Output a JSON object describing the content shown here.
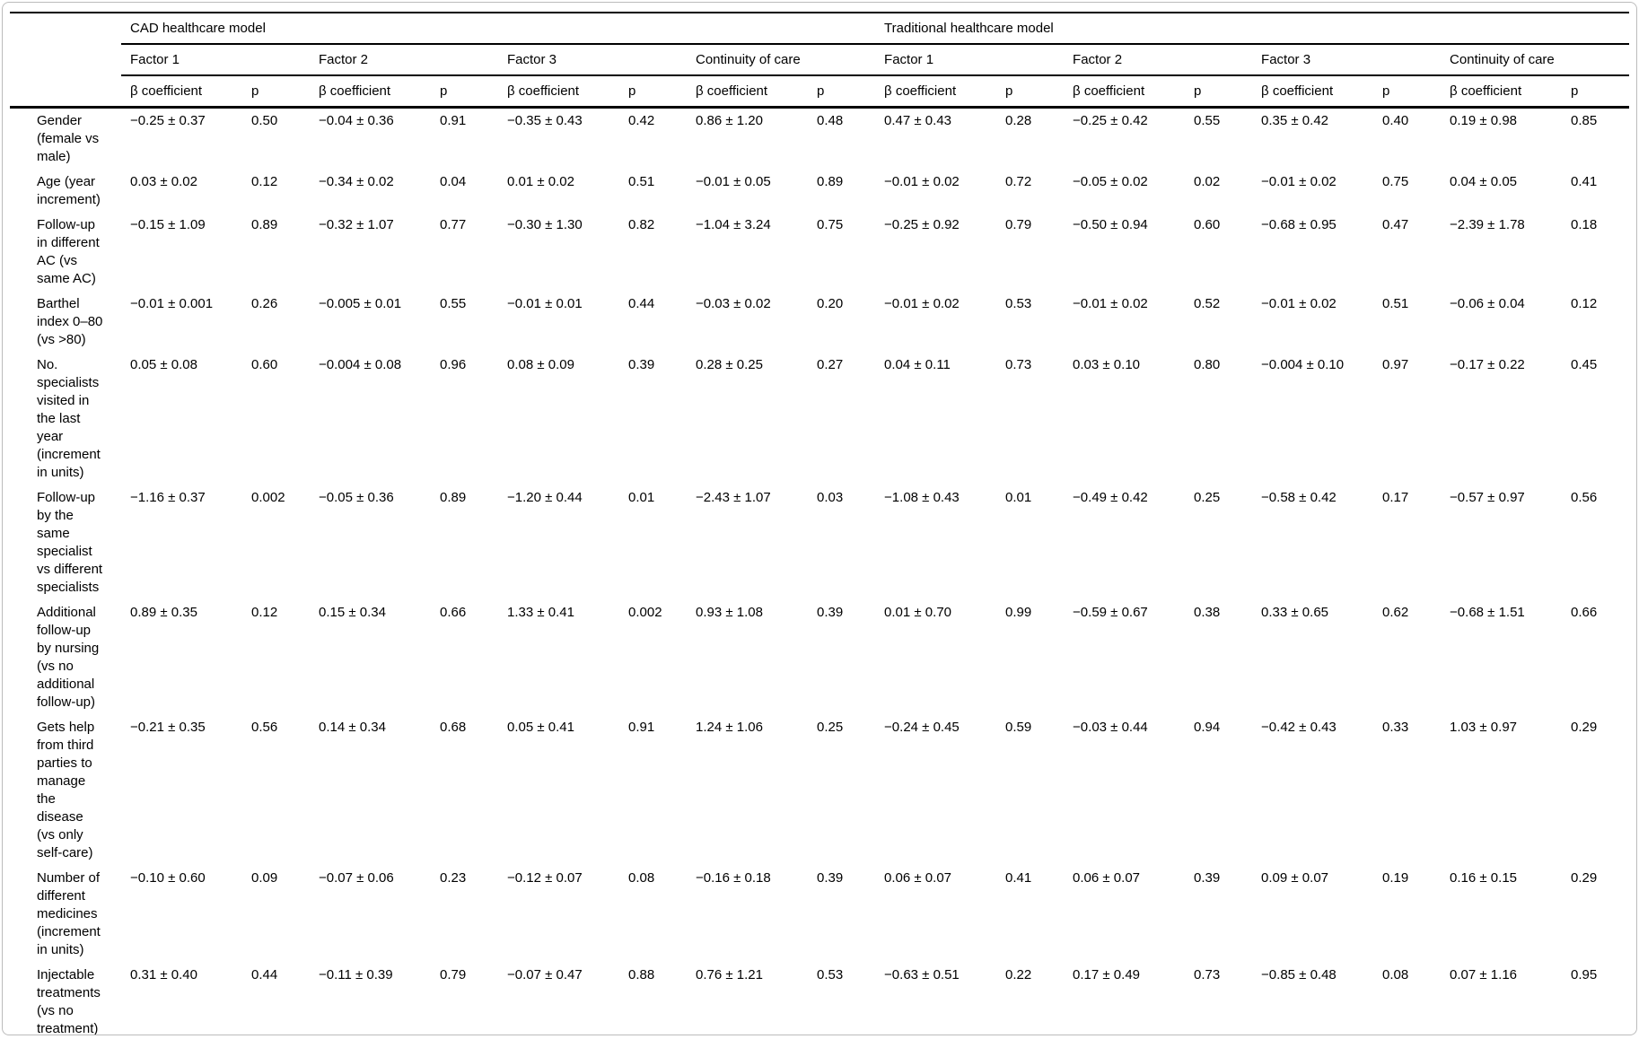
{
  "page": {
    "background": "#ffffff",
    "text_color": "#000000",
    "frame_border_color": "#bcbcbc",
    "rule_color": "#000000"
  },
  "table": {
    "stub_header": "",
    "model_groups": [
      {
        "label": "CAD healthcare model"
      },
      {
        "label": "Traditional healthcare model"
      }
    ],
    "factor_headers": [
      "Factor 1",
      "Factor 2",
      "Factor 3",
      "Continuity of care"
    ],
    "stat_headers": {
      "beta": "β coefficient",
      "p": "p"
    },
    "rows": [
      {
        "label": "Gender\n(female vs\nmale)",
        "cells": [
          "−0.25 ± 0.37",
          "0.50",
          "−0.04 ± 0.36",
          "0.91",
          "−0.35 ± 0.43",
          "0.42",
          "0.86 ± 1.20",
          "0.48",
          "0.47 ± 0.43",
          "0.28",
          "−0.25 ± 0.42",
          "0.55",
          "0.35 ± 0.42",
          "0.40",
          "0.19 ± 0.98",
          "0.85"
        ]
      },
      {
        "label": "Age (year\nincrement)",
        "cells": [
          "0.03 ± 0.02",
          "0.12",
          "−0.34 ± 0.02",
          "0.04",
          "0.01 ± 0.02",
          "0.51",
          "−0.01 ± 0.05",
          "0.89",
          "−0.01 ± 0.02",
          "0.72",
          "−0.05 ± 0.02",
          "0.02",
          "−0.01 ± 0.02",
          "0.75",
          "0.04 ± 0.05",
          "0.41"
        ]
      },
      {
        "label": "Follow-up\nin different\nAC (vs\nsame AC)",
        "cells": [
          "−0.15 ± 1.09",
          "0.89",
          "−0.32 ± 1.07",
          "0.77",
          "−0.30 ± 1.30",
          "0.82",
          "−1.04 ± 3.24",
          "0.75",
          "−0.25 ± 0.92",
          "0.79",
          "−0.50 ± 0.94",
          "0.60",
          "−0.68 ± 0.95",
          "0.47",
          "−2.39 ± 1.78",
          "0.18"
        ]
      },
      {
        "label": "Barthel\nindex 0–80\n(vs >80)",
        "cells": [
          "−0.01 ± 0.001",
          "0.26",
          "−0.005 ± 0.01",
          "0.55",
          "−0.01 ± 0.01",
          "0.44",
          "−0.03 ± 0.02",
          "0.20",
          "−0.01 ± 0.02",
          "0.53",
          "−0.01 ± 0.02",
          "0.52",
          "−0.01 ± 0.02",
          "0.51",
          "−0.06 ± 0.04",
          "0.12"
        ]
      },
      {
        "label": "No.\nspecialists\nvisited in\nthe last\nyear\n(increment\nin units)",
        "cells": [
          "0.05 ± 0.08",
          "0.60",
          "−0.004 ± 0.08",
          "0.96",
          "0.08 ± 0.09",
          "0.39",
          "0.28 ± 0.25",
          "0.27",
          "0.04 ± 0.11",
          "0.73",
          "0.03 ± 0.10",
          "0.80",
          "−0.004 ± 0.10",
          "0.97",
          "−0.17 ± 0.22",
          "0.45"
        ]
      },
      {
        "label": "Follow-up\nby the\nsame\nspecialist\nvs different\nspecialists",
        "cells": [
          "−1.16 ± 0.37",
          "0.002",
          "−0.05 ± 0.36",
          "0.89",
          "−1.20 ± 0.44",
          "0.01",
          "−2.43 ± 1.07",
          "0.03",
          "−1.08 ± 0.43",
          "0.01",
          "−0.49 ± 0.42",
          "0.25",
          "−0.58 ± 0.42",
          "0.17",
          "−0.57 ± 0.97",
          "0.56"
        ]
      },
      {
        "label": "Additional\nfollow-up\nby nursing\n(vs no\nadditional\nfollow-up)",
        "cells": [
          "0.89 ± 0.35",
          "0.12",
          "0.15 ± 0.34",
          "0.66",
          "1.33 ± 0.41",
          "0.002",
          "0.93 ± 1.08",
          "0.39",
          "0.01 ± 0.70",
          "0.99",
          "−0.59 ± 0.67",
          "0.38",
          "0.33 ± 0.65",
          "0.62",
          "−0.68 ± 1.51",
          "0.66"
        ]
      },
      {
        "label": "Gets help\nfrom third\nparties to\nmanage\nthe\ndisease\n(vs only\nself-care)",
        "cells": [
          "−0.21 ± 0.35",
          "0.56",
          "0.14 ± 0.34",
          "0.68",
          "0.05 ± 0.41",
          "0.91",
          "1.24 ± 1.06",
          "0.25",
          "−0.24 ± 0.45",
          "0.59",
          "−0.03 ± 0.44",
          "0.94",
          "−0.42 ± 0.43",
          "0.33",
          "1.03 ± 0.97",
          "0.29"
        ]
      },
      {
        "label": "Number of\ndifferent\nmedicines\n(increment\nin units)",
        "cells": [
          "−0.10 ± 0.60",
          "0.09",
          "−0.07 ± 0.06",
          "0.23",
          "−0.12 ± 0.07",
          "0.08",
          "−0.16 ± 0.18",
          "0.39",
          "0.06 ± 0.07",
          "0.41",
          "0.06 ± 0.07",
          "0.39",
          "0.09 ± 0.07",
          "0.19",
          "0.16 ± 0.15",
          "0.29"
        ]
      },
      {
        "label": "Injectable\ntreatments\n(vs no\ntreatment)",
        "cells": [
          "0.31 ± 0.40",
          "0.44",
          "−0.11 ± 0.39",
          "0.79",
          "−0.07 ± 0.47",
          "0.88",
          "0.76 ± 1.21",
          "0.53",
          "−0.63 ± 0.51",
          "0.22",
          "0.17 ± 0.49",
          "0.73",
          "−0.85 ± 0.48",
          "0.08",
          "0.07 ± 1.16",
          "0.95"
        ]
      }
    ]
  }
}
